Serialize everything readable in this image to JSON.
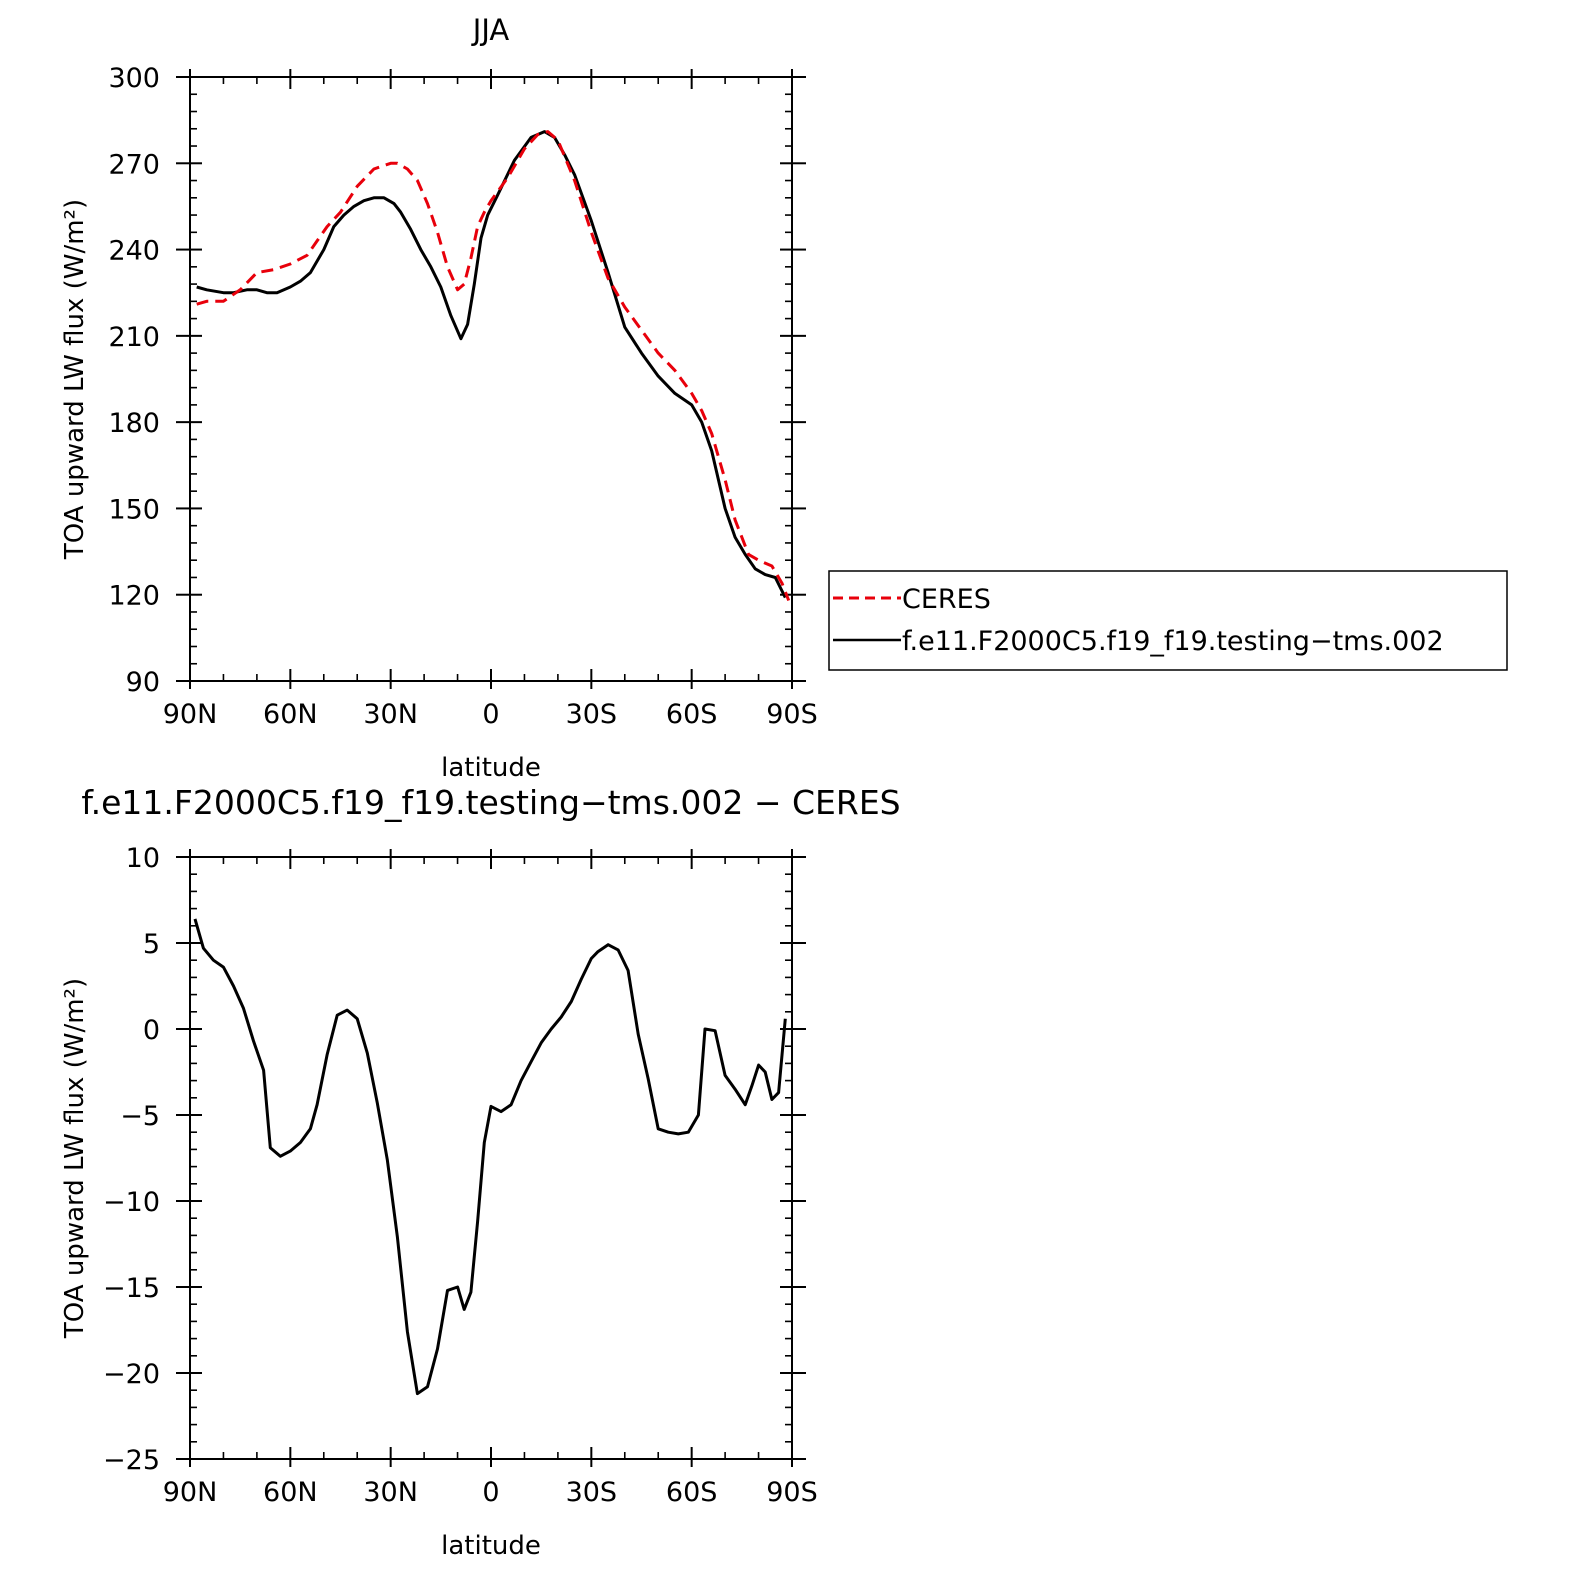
{
  "chart_data": [
    {
      "type": "line",
      "title": "JJA",
      "xlabel": "latitude",
      "ylabel": "TOA upward LW flux (W/m²)",
      "xlim": [
        -90,
        90
      ],
      "ylim": [
        90,
        300
      ],
      "x_ticks": [
        {
          "value": -90,
          "label": "90N"
        },
        {
          "value": -60,
          "label": "60N"
        },
        {
          "value": -30,
          "label": "30N"
        },
        {
          "value": 0,
          "label": "0"
        },
        {
          "value": 30,
          "label": "30S"
        },
        {
          "value": 60,
          "label": "60S"
        },
        {
          "value": 90,
          "label": "90S"
        }
      ],
      "y_ticks": [
        {
          "value": 90,
          "label": "90"
        },
        {
          "value": 120,
          "label": "120"
        },
        {
          "value": 150,
          "label": "150"
        },
        {
          "value": 180,
          "label": "180"
        },
        {
          "value": 210,
          "label": "210"
        },
        {
          "value": 240,
          "label": "240"
        },
        {
          "value": 270,
          "label": "270"
        },
        {
          "value": 300,
          "label": "300"
        }
      ],
      "legend": {
        "placement": "right"
      },
      "series": [
        {
          "name": "CERES",
          "color": "#e8000b",
          "style": "dashed",
          "x": [
            -88,
            -85,
            -80,
            -75,
            -70,
            -65,
            -60,
            -55,
            -52,
            -49,
            -45,
            -40,
            -35,
            -30,
            -28,
            -25,
            -22,
            -19,
            -16,
            -13,
            -10,
            -8,
            -6,
            -4,
            -2,
            0,
            5,
            10,
            14,
            17,
            20,
            25,
            30,
            35,
            40,
            45,
            50,
            55,
            60,
            63,
            66,
            70,
            73,
            77,
            80,
            84,
            87,
            89
          ],
          "y": [
            221,
            222,
            222,
            226,
            232,
            233,
            235,
            238,
            243,
            248,
            253,
            262,
            268,
            270,
            270,
            268,
            264,
            256,
            246,
            234,
            226,
            228,
            237,
            248,
            253,
            257,
            265,
            275,
            280,
            281,
            278,
            264,
            246,
            230,
            220,
            212,
            204,
            198,
            190,
            184,
            176,
            160,
            146,
            134,
            132,
            130,
            124,
            118
          ]
        },
        {
          "name": "f.e11.F2000C5.f19_f19.testing−tms.002",
          "color": "#000000",
          "style": "solid",
          "x": [
            -88,
            -85,
            -80,
            -77,
            -73,
            -70,
            -67,
            -64,
            -60,
            -57,
            -54,
            -50,
            -47,
            -44,
            -41,
            -38,
            -35,
            -32,
            -29,
            -27,
            -24,
            -21,
            -18,
            -15,
            -12,
            -9,
            -7,
            -5,
            -3,
            -1,
            2,
            7,
            12,
            16,
            19,
            22,
            25,
            30,
            35,
            40,
            45,
            50,
            55,
            60,
            63,
            66,
            70,
            73,
            76,
            79,
            82,
            85,
            88
          ],
          "y": [
            227,
            226,
            225,
            225,
            226,
            226,
            225,
            225,
            227,
            229,
            232,
            240,
            248,
            252,
            255,
            257,
            258,
            258,
            256,
            253,
            247,
            240,
            234,
            227,
            217,
            209,
            214,
            228,
            244,
            252,
            259,
            271,
            279,
            281,
            279,
            273,
            266,
            250,
            232,
            213,
            204,
            196,
            190,
            186,
            180,
            170,
            150,
            140,
            134,
            129,
            127,
            126,
            119
          ]
        }
      ]
    },
    {
      "type": "line",
      "title": "f.e11.F2000C5.f19_f19.testing−tms.002 − CERES",
      "xlabel": "latitude",
      "ylabel": "TOA upward LW flux (W/m²)",
      "xlim": [
        -90,
        90
      ],
      "ylim": [
        -25,
        10
      ],
      "x_ticks": [
        {
          "value": -90,
          "label": "90N"
        },
        {
          "value": -60,
          "label": "60N"
        },
        {
          "value": -30,
          "label": "30N"
        },
        {
          "value": 0,
          "label": "0"
        },
        {
          "value": 30,
          "label": "30S"
        },
        {
          "value": 60,
          "label": "60S"
        },
        {
          "value": 90,
          "label": "90S"
        }
      ],
      "y_ticks": [
        {
          "value": -25,
          "label": "−25"
        },
        {
          "value": -20,
          "label": "−20"
        },
        {
          "value": -15,
          "label": "−15"
        },
        {
          "value": -10,
          "label": "−10"
        },
        {
          "value": -5,
          "label": "−5"
        },
        {
          "value": 0,
          "label": "0"
        },
        {
          "value": 5,
          "label": "5"
        },
        {
          "value": 10,
          "label": "10"
        }
      ],
      "series": [
        {
          "color": "#000000",
          "style": "solid",
          "x": [
            -88.5,
            -86,
            -83,
            -80,
            -77,
            -74,
            -71,
            -68,
            -66,
            -63,
            -60,
            -57,
            -54,
            -52,
            -49,
            -46,
            -43,
            -40,
            -37,
            -34,
            -31,
            -28,
            -25,
            -22,
            -19,
            -16,
            -13,
            -10,
            -8,
            -6,
            -4,
            -2,
            0,
            3,
            6,
            9,
            12,
            15,
            18,
            21,
            24,
            27,
            30,
            32,
            35,
            38,
            41,
            44,
            47,
            50,
            53,
            56,
            59,
            62,
            64,
            67,
            70,
            73,
            76,
            78,
            80,
            82,
            84,
            86,
            88
          ],
          "y": [
            6.4,
            4.7,
            4.0,
            3.6,
            2.5,
            1.2,
            -0.7,
            -2.4,
            -6.9,
            -7.4,
            -7.1,
            -6.6,
            -5.8,
            -4.4,
            -1.5,
            0.8,
            1.1,
            0.6,
            -1.4,
            -4.3,
            -7.6,
            -12.1,
            -17.6,
            -21.2,
            -20.8,
            -18.6,
            -15.2,
            -15.0,
            -16.3,
            -15.3,
            -11.2,
            -6.6,
            -4.5,
            -4.8,
            -4.4,
            -3.0,
            -1.9,
            -0.8,
            0.0,
            0.7,
            1.6,
            2.9,
            4.1,
            4.5,
            4.9,
            4.6,
            3.4,
            -0.3,
            -2.9,
            -5.8,
            -6.0,
            -6.1,
            -6.0,
            -5.0,
            0.0,
            -0.1,
            -2.7,
            -3.5,
            -4.4,
            -3.3,
            -2.1,
            -2.5,
            -4.1,
            -3.7,
            0.6
          ]
        }
      ]
    }
  ]
}
